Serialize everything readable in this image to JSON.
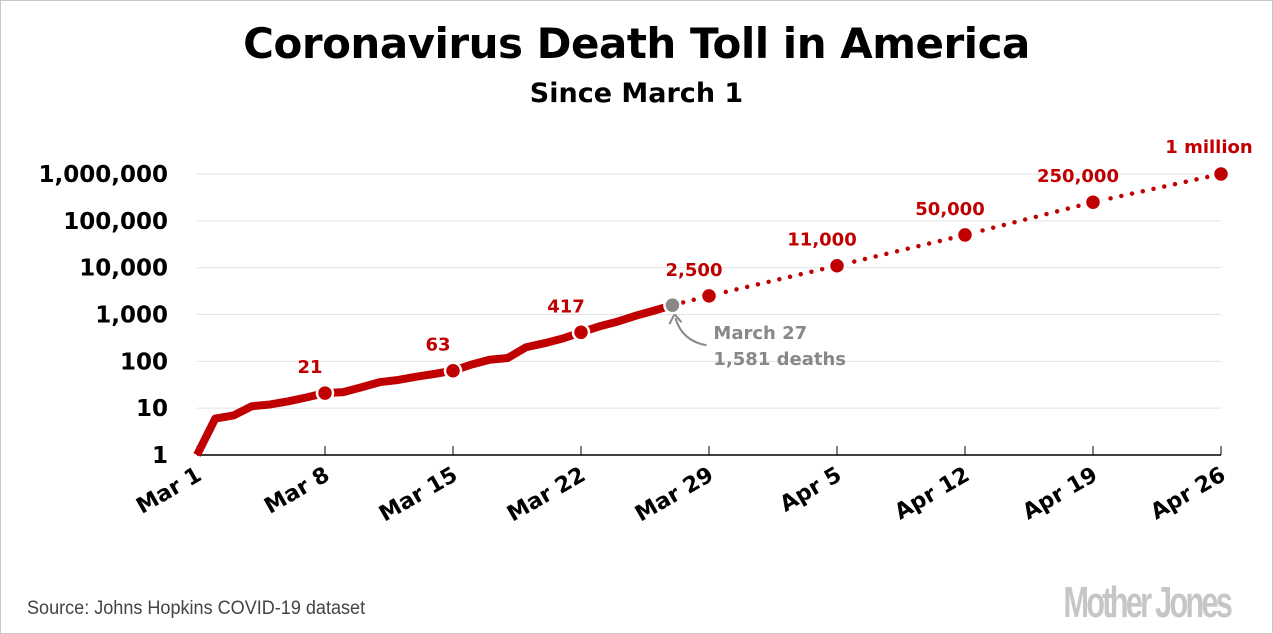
{
  "chart_data": {
    "type": "line",
    "title": "Coronavirus Death Toll in America",
    "subtitle": "Since March 1",
    "y_scale": "log",
    "ylim": [
      1,
      1000000
    ],
    "y_ticks": [
      1,
      10,
      100,
      1000,
      10000,
      100000,
      1000000
    ],
    "y_tick_labels": [
      "1",
      "10",
      "100",
      "1,000",
      "10,000",
      "100,000",
      "1,000,000"
    ],
    "xlim": [
      "2020-03-01",
      "2020-04-26"
    ],
    "x_ticks": [
      "2020-03-01",
      "2020-03-08",
      "2020-03-15",
      "2020-03-22",
      "2020-03-29",
      "2020-04-05",
      "2020-04-12",
      "2020-04-19",
      "2020-04-26"
    ],
    "x_tick_labels": [
      "Mar 1",
      "Mar 8",
      "Mar 15",
      "Mar 22",
      "Mar 29",
      "Apr 5",
      "Apr 12",
      "Apr 19",
      "Apr 26"
    ],
    "grid": true,
    "colors": {
      "actual": "#c00000",
      "projection": "#c00000",
      "annotation": "#888888"
    },
    "series": [
      {
        "style": "solid",
        "x": [
          "2020-03-01",
          "2020-03-02",
          "2020-03-03",
          "2020-03-04",
          "2020-03-05",
          "2020-03-06",
          "2020-03-07",
          "2020-03-08",
          "2020-03-09",
          "2020-03-10",
          "2020-03-11",
          "2020-03-12",
          "2020-03-13",
          "2020-03-14",
          "2020-03-15",
          "2020-03-16",
          "2020-03-17",
          "2020-03-18",
          "2020-03-19",
          "2020-03-20",
          "2020-03-21",
          "2020-03-22",
          "2020-03-23",
          "2020-03-24",
          "2020-03-25",
          "2020-03-26",
          "2020-03-27"
        ],
        "y": [
          1,
          6,
          7,
          11,
          12,
          14,
          17,
          21,
          22,
          28,
          36,
          40,
          47,
          54,
          63,
          85,
          108,
          118,
          200,
          244,
          307,
          417,
          557,
          706,
          942,
          1209,
          1581
        ]
      },
      {
        "style": "dotted",
        "x": [
          "2020-03-27",
          "2020-03-29",
          "2020-04-05",
          "2020-04-12",
          "2020-04-19",
          "2020-04-26"
        ],
        "y": [
          1581,
          2500,
          11000,
          50000,
          250000,
          1000000
        ]
      }
    ],
    "markers": [
      {
        "x": "2020-03-08",
        "y": 21,
        "label": "21"
      },
      {
        "x": "2020-03-15",
        "y": 63,
        "label": "63"
      },
      {
        "x": "2020-03-22",
        "y": 417,
        "label": "417"
      },
      {
        "x": "2020-03-29",
        "y": 2500,
        "label": "2,500"
      },
      {
        "x": "2020-04-05",
        "y": 11000,
        "label": "11,000"
      },
      {
        "x": "2020-04-12",
        "y": 50000,
        "label": "50,000"
      },
      {
        "x": "2020-04-19",
        "y": 250000,
        "label": "250,000"
      },
      {
        "x": "2020-04-26",
        "y": 1000000,
        "label": "1 million"
      }
    ],
    "annotation": {
      "x": "2020-03-27",
      "y": 1581,
      "lines": [
        "March 27",
        "1,581 deaths"
      ]
    }
  },
  "footer": {
    "source": "Source: Johns Hopkins COVID-19 dataset",
    "logo": "Mother Jones"
  }
}
